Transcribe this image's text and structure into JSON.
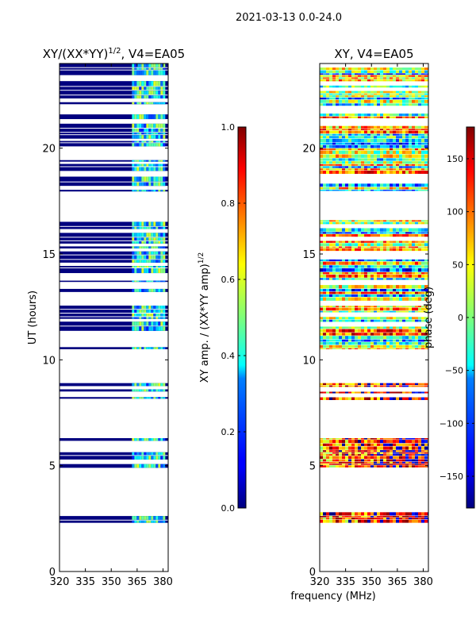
{
  "figure": {
    "suptitle": "2021-03-13 0.0-24.0"
  },
  "chart_data": [
    {
      "type": "heatmap",
      "title_main": "XY/(XX*YY)",
      "title_exp": "1/2",
      "title_suffix": ", V4=EA05",
      "xlabel": "",
      "ylabel": "UT (hours)",
      "xlim": [
        320,
        383
      ],
      "ylim": [
        0,
        24
      ],
      "xticks": [
        "320",
        "335",
        "350",
        "365",
        "380"
      ],
      "xtick_values": [
        320,
        335,
        350,
        365,
        380
      ],
      "yticks": [
        "0",
        "5",
        "10",
        "15",
        "20"
      ],
      "ytick_values": [
        0,
        5,
        10,
        15,
        20
      ],
      "data_blocks_ut": [
        [
          2.3,
          2.8
        ],
        [
          4.9,
          6.3
        ],
        [
          8.1,
          8.9
        ],
        [
          10.5,
          16.6
        ],
        [
          17.9,
          24.0
        ]
      ],
      "hot_channel_range_mhz": [
        362,
        381
      ],
      "colorbar": {
        "label_main": "XY amp. / (XX*YY amp)",
        "label_exp": "1/2",
        "range": [
          0.0,
          1.0
        ],
        "tick_labels": [
          "0.0",
          "0.2",
          "0.4",
          "0.6",
          "0.8",
          "1.0"
        ],
        "tick_values": [
          0.0,
          0.2,
          0.4,
          0.6,
          0.8,
          1.0
        ]
      }
    },
    {
      "type": "heatmap",
      "title": "XY, V4=EA05",
      "xlabel": "frequency (MHz)",
      "ylabel": "",
      "xlim": [
        320,
        383
      ],
      "ylim": [
        0,
        24
      ],
      "xticks": [
        "320",
        "335",
        "350",
        "365",
        "380"
      ],
      "xtick_values": [
        320,
        335,
        350,
        365,
        380
      ],
      "yticks": [
        "0",
        "5",
        "10",
        "15",
        "20"
      ],
      "ytick_values": [
        0,
        5,
        10,
        15,
        20
      ],
      "data_blocks_ut": [
        [
          2.3,
          2.8
        ],
        [
          4.9,
          6.3
        ],
        [
          8.1,
          8.9
        ],
        [
          10.5,
          16.6
        ],
        [
          17.9,
          24.0
        ]
      ],
      "colorbar": {
        "label": "phase (deg)",
        "range": [
          -180,
          180
        ],
        "tick_labels": [
          "−150",
          "−100",
          "−50",
          "0",
          "50",
          "100",
          "150"
        ],
        "tick_values": [
          -150,
          -100,
          -50,
          0,
          50,
          100,
          150
        ]
      }
    }
  ]
}
